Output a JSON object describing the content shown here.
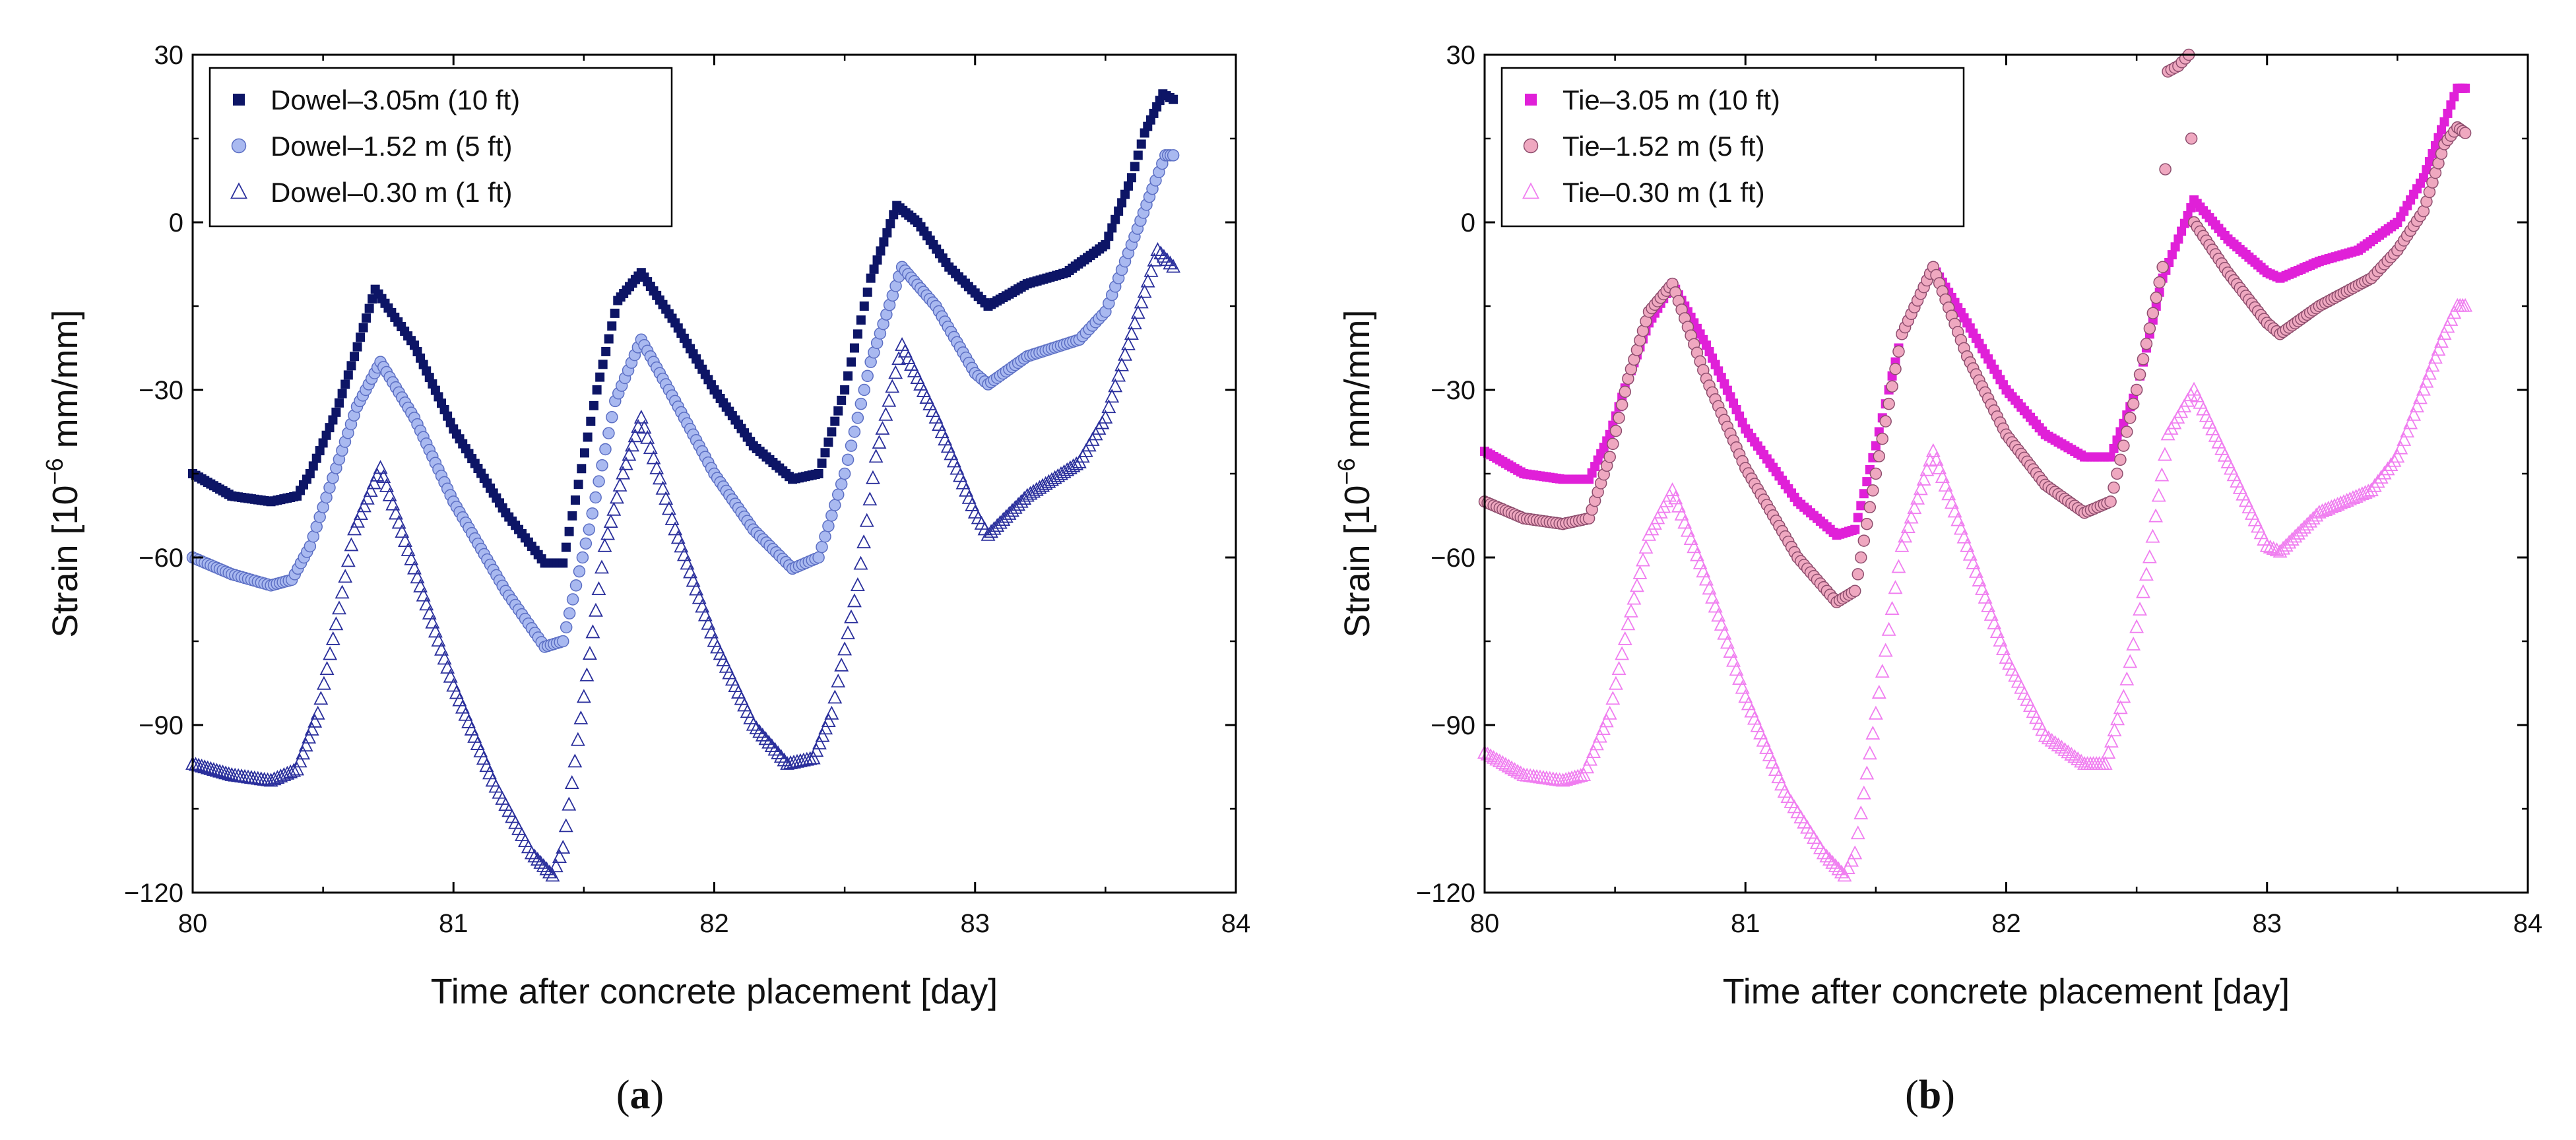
{
  "chart_data": [
    {
      "type": "scatter",
      "panel_label": "a",
      "xlabel": "Time after concrete placement [day]",
      "ylabel": "Strain [10",
      "ylabel_exp": "−6",
      "ylabel_unit": " mm/mm]",
      "xlim": [
        80,
        84
      ],
      "ylim": [
        -120,
        30
      ],
      "xticks": [
        80,
        81,
        82,
        83,
        84
      ],
      "yticks": [
        30,
        0,
        -30,
        -60,
        -90,
        -120
      ],
      "ytick_labels": [
        "30",
        "0",
        "−30",
        "−60",
        "−90",
        "−120"
      ],
      "legend_position": "top-left",
      "series": [
        {
          "name": "Dowel–3.05m (10 ft)",
          "marker": "square",
          "color": "#0d1566",
          "points": [
            [
              80.0,
              -45
            ],
            [
              80.15,
              -49
            ],
            [
              80.3,
              -50
            ],
            [
              80.4,
              -49
            ],
            [
              80.45,
              -45
            ],
            [
              80.55,
              -34
            ],
            [
              80.62,
              -24
            ],
            [
              80.7,
              -12
            ],
            [
              80.85,
              -22
            ],
            [
              81.0,
              -37
            ],
            [
              81.2,
              -52
            ],
            [
              81.35,
              -61
            ],
            [
              81.42,
              -61
            ],
            [
              81.55,
              -30
            ],
            [
              81.63,
              -14
            ],
            [
              81.72,
              -9
            ],
            [
              81.85,
              -18
            ],
            [
              82.0,
              -30
            ],
            [
              82.15,
              -40
            ],
            [
              82.3,
              -46
            ],
            [
              82.4,
              -45
            ],
            [
              82.5,
              -30
            ],
            [
              82.6,
              -10
            ],
            [
              82.7,
              3
            ],
            [
              82.78,
              0
            ],
            [
              82.9,
              -8
            ],
            [
              83.05,
              -15
            ],
            [
              83.2,
              -11
            ],
            [
              83.35,
              -9
            ],
            [
              83.5,
              -4
            ],
            [
              83.6,
              8
            ],
            [
              83.65,
              16
            ],
            [
              83.72,
              23
            ],
            [
              83.76,
              22
            ]
          ]
        },
        {
          "name": "Dowel–1.52 m (5 ft)",
          "marker": "circle",
          "color": "#a9b9f0",
          "edge": "#5c6fc4",
          "points": [
            [
              80.0,
              -60
            ],
            [
              80.15,
              -63
            ],
            [
              80.3,
              -65
            ],
            [
              80.38,
              -64
            ],
            [
              80.45,
              -58
            ],
            [
              80.55,
              -44
            ],
            [
              80.63,
              -33
            ],
            [
              80.72,
              -25
            ],
            [
              80.85,
              -35
            ],
            [
              81.0,
              -50
            ],
            [
              81.2,
              -66
            ],
            [
              81.35,
              -76
            ],
            [
              81.42,
              -75
            ],
            [
              81.52,
              -55
            ],
            [
              81.62,
              -32
            ],
            [
              81.72,
              -21
            ],
            [
              81.85,
              -32
            ],
            [
              82.0,
              -45
            ],
            [
              82.15,
              -55
            ],
            [
              82.3,
              -62
            ],
            [
              82.4,
              -60
            ],
            [
              82.5,
              -45
            ],
            [
              82.6,
              -25
            ],
            [
              82.72,
              -8
            ],
            [
              82.85,
              -15
            ],
            [
              83.0,
              -27
            ],
            [
              83.05,
              -29
            ],
            [
              83.2,
              -24
            ],
            [
              83.4,
              -21
            ],
            [
              83.5,
              -16
            ],
            [
              83.6,
              -4
            ],
            [
              83.68,
              6
            ],
            [
              83.73,
              12
            ],
            [
              83.76,
              12
            ]
          ]
        },
        {
          "name": "Dowel–0.30 m (1 ft)",
          "marker": "triangle",
          "color": "#2a2f9c",
          "points": [
            [
              80.0,
              -97
            ],
            [
              80.15,
              -99
            ],
            [
              80.3,
              -100
            ],
            [
              80.4,
              -98
            ],
            [
              80.48,
              -88
            ],
            [
              80.55,
              -72
            ],
            [
              80.62,
              -55
            ],
            [
              80.72,
              -44
            ],
            [
              80.85,
              -62
            ],
            [
              81.0,
              -83
            ],
            [
              81.15,
              -100
            ],
            [
              81.3,
              -113
            ],
            [
              81.38,
              -117
            ],
            [
              81.42,
              -112
            ],
            [
              81.5,
              -85
            ],
            [
              81.58,
              -58
            ],
            [
              81.65,
              -45
            ],
            [
              81.72,
              -35
            ],
            [
              81.85,
              -55
            ],
            [
              82.0,
              -75
            ],
            [
              82.15,
              -90
            ],
            [
              82.28,
              -97
            ],
            [
              82.38,
              -96
            ],
            [
              82.45,
              -88
            ],
            [
              82.55,
              -65
            ],
            [
              82.62,
              -42
            ],
            [
              82.72,
              -22
            ],
            [
              82.85,
              -35
            ],
            [
              83.0,
              -52
            ],
            [
              83.05,
              -56
            ],
            [
              83.2,
              -49
            ],
            [
              83.4,
              -43
            ],
            [
              83.5,
              -35
            ],
            [
              83.6,
              -20
            ],
            [
              83.7,
              -5
            ],
            [
              83.76,
              -8
            ]
          ]
        }
      ]
    },
    {
      "type": "scatter",
      "panel_label": "b",
      "xlabel": "Time after concrete placement [day]",
      "ylabel": "Strain [10",
      "ylabel_exp": "−6",
      "ylabel_unit": " mm/mm]",
      "xlim": [
        80,
        84
      ],
      "ylim": [
        -120,
        30
      ],
      "xticks": [
        80,
        81,
        82,
        83,
        84
      ],
      "yticks": [
        30,
        0,
        -30,
        -60,
        -90,
        -120
      ],
      "ytick_labels": [
        "30",
        "0",
        "−30",
        "−60",
        "−90",
        "−120"
      ],
      "legend_position": "top-left",
      "series": [
        {
          "name": "Tie–3.05 m (10 ft)",
          "marker": "square",
          "color": "#e020d8",
          "points": [
            [
              80.0,
              -41
            ],
            [
              80.15,
              -45
            ],
            [
              80.3,
              -46
            ],
            [
              80.4,
              -46
            ],
            [
              80.48,
              -38
            ],
            [
              80.55,
              -28
            ],
            [
              80.63,
              -18
            ],
            [
              80.72,
              -11
            ],
            [
              80.85,
              -22
            ],
            [
              81.0,
              -37
            ],
            [
              81.2,
              -50
            ],
            [
              81.35,
              -56
            ],
            [
              81.42,
              -55
            ],
            [
              81.5,
              -40
            ],
            [
              81.6,
              -20
            ],
            [
              81.72,
              -8
            ],
            [
              81.85,
              -18
            ],
            [
              82.0,
              -30
            ],
            [
              82.15,
              -38
            ],
            [
              82.3,
              -42
            ],
            [
              82.4,
              -42
            ],
            [
              82.5,
              -30
            ],
            [
              82.6,
              -10
            ],
            [
              82.72,
              4
            ],
            [
              82.85,
              -3
            ],
            [
              83.0,
              -9
            ],
            [
              83.05,
              -10
            ],
            [
              83.2,
              -7
            ],
            [
              83.35,
              -5
            ],
            [
              83.5,
              0
            ],
            [
              83.6,
              8
            ],
            [
              83.68,
              18
            ],
            [
              83.73,
              24
            ],
            [
              83.76,
              24
            ]
          ]
        },
        {
          "name": "Tie–1.52 m (5 ft)",
          "marker": "circle",
          "color": "#efa8c0",
          "edge": "#8e4e6e",
          "points": [
            [
              80.0,
              -50
            ],
            [
              80.15,
              -53
            ],
            [
              80.3,
              -54
            ],
            [
              80.4,
              -53
            ],
            [
              80.48,
              -42
            ],
            [
              80.55,
              -28
            ],
            [
              80.63,
              -16
            ],
            [
              80.72,
              -11
            ],
            [
              80.85,
              -28
            ],
            [
              81.0,
              -44
            ],
            [
              81.2,
              -60
            ],
            [
              81.35,
              -68
            ],
            [
              81.42,
              -66
            ],
            [
              81.5,
              -45
            ],
            [
              81.6,
              -20
            ],
            [
              81.72,
              -8
            ],
            [
              81.85,
              -24
            ],
            [
              82.0,
              -38
            ],
            [
              82.15,
              -47
            ],
            [
              82.3,
              -52
            ],
            [
              82.4,
              -50
            ],
            [
              82.5,
              -30
            ],
            [
              82.6,
              -8
            ],
            [
              82.62,
              27
            ],
            [
              82.66,
              28
            ],
            [
              82.7,
              30
            ],
            [
              82.72,
              0
            ],
            [
              82.85,
              -9
            ],
            [
              83.0,
              -18
            ],
            [
              83.05,
              -20
            ],
            [
              83.2,
              -15
            ],
            [
              83.4,
              -10
            ],
            [
              83.5,
              -5
            ],
            [
              83.6,
              2
            ],
            [
              83.68,
              14
            ],
            [
              83.73,
              17
            ],
            [
              83.76,
              16
            ]
          ]
        },
        {
          "name": "Tie–0.30 m (1 ft)",
          "marker": "triangle",
          "color": "#f07ef0",
          "points": [
            [
              80.0,
              -95
            ],
            [
              80.15,
              -99
            ],
            [
              80.3,
              -100
            ],
            [
              80.38,
              -99
            ],
            [
              80.48,
              -88
            ],
            [
              80.55,
              -72
            ],
            [
              80.63,
              -56
            ],
            [
              80.72,
              -48
            ],
            [
              80.85,
              -64
            ],
            [
              81.0,
              -85
            ],
            [
              81.15,
              -102
            ],
            [
              81.3,
              -113
            ],
            [
              81.38,
              -117
            ],
            [
              81.42,
              -113
            ],
            [
              81.5,
              -88
            ],
            [
              81.6,
              -58
            ],
            [
              81.72,
              -41
            ],
            [
              81.85,
              -58
            ],
            [
              82.0,
              -78
            ],
            [
              82.15,
              -92
            ],
            [
              82.3,
              -97
            ],
            [
              82.38,
              -97
            ],
            [
              82.45,
              -85
            ],
            [
              82.55,
              -60
            ],
            [
              82.62,
              -38
            ],
            [
              82.72,
              -30
            ],
            [
              82.85,
              -43
            ],
            [
              83.0,
              -58
            ],
            [
              83.05,
              -59
            ],
            [
              83.2,
              -52
            ],
            [
              83.4,
              -48
            ],
            [
              83.5,
              -42
            ],
            [
              83.6,
              -30
            ],
            [
              83.68,
              -20
            ],
            [
              83.73,
              -15
            ],
            [
              83.76,
              -15
            ]
          ]
        }
      ]
    }
  ]
}
